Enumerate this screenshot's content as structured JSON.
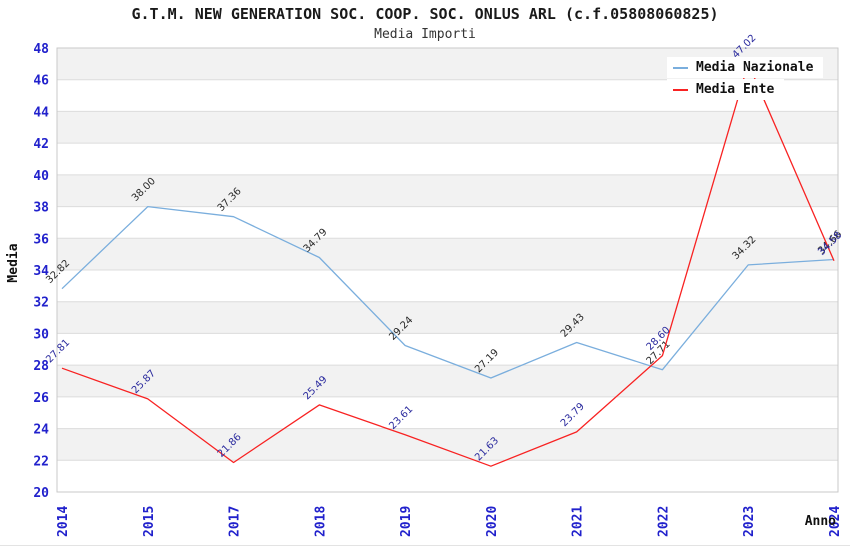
{
  "page": {
    "background": "#ffffff"
  },
  "chart_data": {
    "type": "line",
    "title": "G.T.M. NEW GENERATION SOC. COOP. SOC. ONLUS ARL (c.f.05808060825)",
    "subtitle": "Media Importi",
    "xlabel": "Anno",
    "ylabel": "Media",
    "categories": [
      "2014",
      "2015",
      "2017",
      "2018",
      "2019",
      "2020",
      "2021",
      "2022",
      "2023",
      "2024"
    ],
    "series": [
      {
        "name": "Media Nazionale",
        "color": "#7aaedd",
        "label_color": "#2a2a2a",
        "values": [
          32.82,
          38.0,
          37.36,
          34.79,
          29.24,
          27.19,
          29.43,
          27.71,
          34.32,
          34.66
        ]
      },
      {
        "name": "Media Ente",
        "color": "#f82222",
        "label_color": "#2b2b9e",
        "values": [
          27.81,
          25.87,
          21.86,
          25.49,
          23.61,
          21.63,
          23.79,
          28.6,
          47.02,
          34.58
        ]
      }
    ],
    "ylim": [
      20,
      48
    ],
    "ytick_step": 2,
    "grid": true,
    "legend_position": "top-right",
    "tick_color": "#2121cc",
    "band_colors": [
      "#f2f2f2",
      "#ffffff"
    ],
    "grid_color": "#dcdcdc",
    "border_color": "#c9c9c9",
    "value_label_decimals": 2
  }
}
